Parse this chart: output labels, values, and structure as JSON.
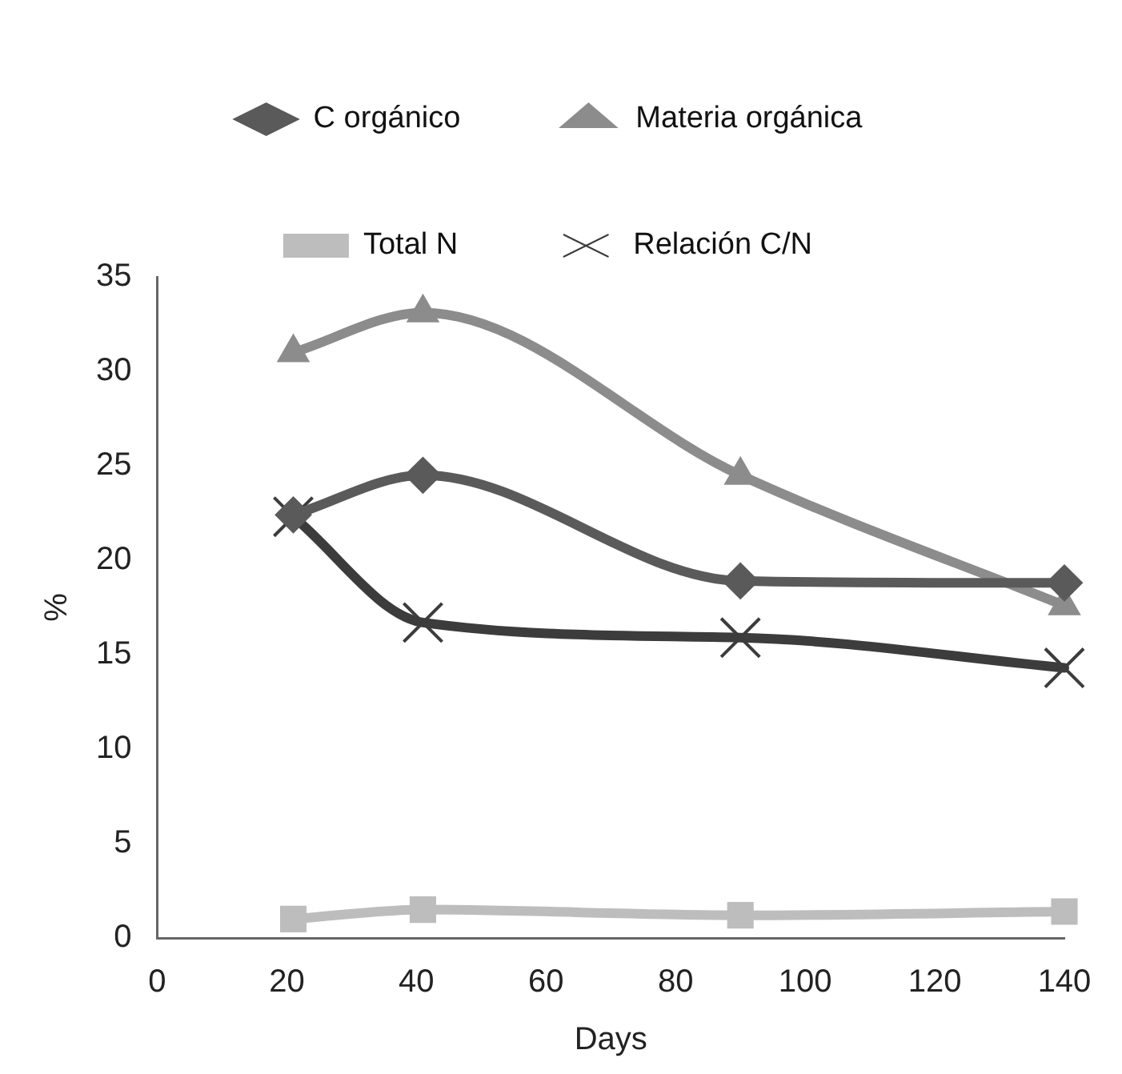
{
  "chart_data": {
    "type": "line",
    "xlabel": "Days",
    "ylabel": "%",
    "xlim": [
      0,
      140
    ],
    "xticks": [
      0,
      20,
      40,
      60,
      80,
      100,
      120,
      140
    ],
    "ylim": [
      0,
      35
    ],
    "yticks": [
      0,
      5,
      10,
      15,
      20,
      25,
      30,
      35
    ],
    "grid": false,
    "legend": "top",
    "x": [
      21,
      41,
      90,
      140
    ],
    "series": [
      {
        "name": "C orgánico",
        "color": "#5a5a5a",
        "marker": "diamond",
        "values": [
          22.4,
          24.5,
          18.9,
          18.8
        ]
      },
      {
        "name": "Materia orgánica",
        "color": "#8c8c8c",
        "marker": "triangle",
        "values": [
          31.0,
          33.1,
          24.5,
          17.6
        ]
      },
      {
        "name": "Total N",
        "color": "#bdbdbd",
        "marker": "square",
        "values": [
          1.0,
          1.5,
          1.2,
          1.4
        ]
      },
      {
        "name": "Relación C/N",
        "color": "#3c3c3c",
        "marker": "cross",
        "values": [
          22.3,
          16.7,
          15.9,
          14.3
        ]
      }
    ]
  }
}
